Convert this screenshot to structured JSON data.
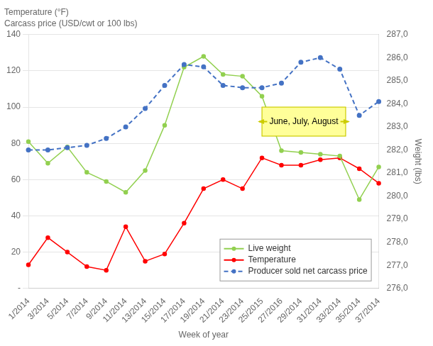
{
  "chart_data": {
    "type": "line",
    "title": "Temperature (°F)",
    "subtitle": "Carcass price (USD/cwt or 100 lbs)",
    "xlabel": "Week of year",
    "y2label": "Weight (lbs)",
    "categories": [
      "1/2014",
      "3/2014",
      "5/2014",
      "7/2014",
      "9/2014",
      "11/2014",
      "13/2014",
      "15/2014",
      "17/2014",
      "19/2014",
      "21/2014",
      "23/2014",
      "25/2015",
      "27/2016",
      "29/2014",
      "31/2014",
      "33/2014",
      "35/2014",
      "37/2014"
    ],
    "series": [
      {
        "name": "Live weight",
        "color": "#92D050",
        "marker": "circle",
        "line_style": "solid",
        "values": [
          81,
          69,
          78,
          64,
          59,
          53,
          65,
          90,
          122,
          128,
          118,
          117,
          106,
          76,
          75,
          74,
          73,
          49,
          67
        ]
      },
      {
        "name": "Temperature",
        "color": "#FF0000",
        "marker": "circle",
        "line_style": "solid",
        "values": [
          13,
          28,
          20,
          12,
          10,
          34,
          15,
          19,
          36,
          55,
          60,
          55,
          72,
          68,
          68,
          71,
          72,
          66,
          58
        ]
      },
      {
        "name": "Producer sold net carcass price",
        "color": "#4472C4",
        "marker": "circle",
        "line_style": "dashed",
        "axis": "y2",
        "values": [
          282.0,
          282.0,
          282.1,
          282.2,
          282.5,
          283.0,
          283.8,
          284.8,
          285.7,
          285.6,
          284.8,
          284.7,
          284.7,
          284.9,
          285.8,
          286.0,
          285.5,
          283.5,
          284.1
        ]
      }
    ],
    "ylim": [
      0,
      140
    ],
    "yticks": [
      {
        "value": 0,
        "label": "-"
      },
      20,
      40,
      60,
      80,
      100,
      120,
      140
    ],
    "y2lim": [
      276.0,
      287.0
    ],
    "y2ticks": [
      {
        "value": 276,
        "label": "276,0"
      },
      {
        "value": 277,
        "label": "277,0"
      },
      {
        "value": 278,
        "label": "278,0"
      },
      {
        "value": 279,
        "label": "279,0"
      },
      {
        "value": 280,
        "label": "280,0"
      },
      {
        "value": 281,
        "label": "281,0"
      },
      {
        "value": 282,
        "label": "282,0"
      },
      {
        "value": 283,
        "label": "283,0"
      },
      {
        "value": 284,
        "label": "284,0"
      },
      {
        "value": 285,
        "label": "285,0"
      },
      {
        "value": 286,
        "label": "286,0"
      },
      {
        "value": 287,
        "label": "287,0"
      }
    ],
    "grid": true,
    "legend": "lower right",
    "annotations": [
      {
        "text": "June, July, August",
        "x_start": 12,
        "x_end": 16.3,
        "y": 92,
        "height": 16,
        "color": "#FFFF99",
        "edge_color": "#CCCC00"
      }
    ]
  }
}
